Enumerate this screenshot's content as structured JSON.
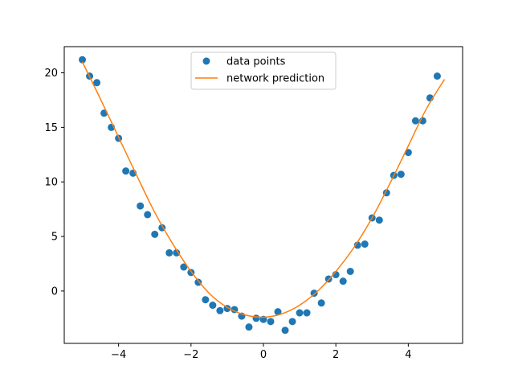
{
  "chart_data": {
    "type": "scatter",
    "title": "",
    "xlabel": "",
    "ylabel": "",
    "xlim": [
      -5.5,
      5.5
    ],
    "ylim": [
      -4.8,
      22.4
    ],
    "xticks": [
      -4,
      -2,
      0,
      2,
      4
    ],
    "xtick_labels": [
      "−4",
      "−2",
      "0",
      "2",
      "4"
    ],
    "yticks": [
      0,
      5,
      10,
      15,
      20
    ],
    "ytick_labels": [
      "0",
      "5",
      "10",
      "15",
      "20"
    ],
    "grid": false,
    "legend_position": "top-center",
    "series": [
      {
        "name": "data points",
        "type": "scatter",
        "color": "#1f77b4",
        "x": [
          -5.0,
          -4.8,
          -4.6,
          -4.4,
          -4.2,
          -4.0,
          -3.8,
          -3.6,
          -3.4,
          -3.2,
          -3.0,
          -2.8,
          -2.6,
          -2.4,
          -2.2,
          -2.0,
          -1.8,
          -1.6,
          -1.4,
          -1.2,
          -1.0,
          -0.8,
          -0.6,
          -0.4,
          -0.2,
          0.0,
          0.2,
          0.4,
          0.6,
          0.8,
          1.0,
          1.2,
          1.4,
          1.6,
          1.8,
          2.0,
          2.2,
          2.4,
          2.6,
          2.8,
          3.0,
          3.2,
          3.4,
          3.6,
          3.8,
          4.0,
          4.2,
          4.4,
          4.6,
          4.8
        ],
        "y": [
          21.2,
          19.7,
          19.1,
          16.3,
          15.0,
          14.0,
          11.0,
          10.8,
          7.8,
          7.0,
          5.2,
          5.8,
          3.5,
          3.5,
          2.2,
          1.7,
          0.8,
          -0.8,
          -1.3,
          -1.8,
          -1.6,
          -1.7,
          -2.3,
          -3.3,
          -2.5,
          -2.6,
          -2.8,
          -1.9,
          -3.6,
          -2.8,
          -2.0,
          -2.0,
          -0.2,
          -1.1,
          1.1,
          1.5,
          0.9,
          1.8,
          4.2,
          4.3,
          6.7,
          6.5,
          9.0,
          10.6,
          10.7,
          12.7,
          15.6,
          15.6,
          17.7,
          19.7
        ]
      },
      {
        "name": "network prediction",
        "type": "line",
        "color": "#ff7f0e",
        "x": [
          -5.0,
          -4.5,
          -4.0,
          -3.5,
          -3.0,
          -2.5,
          -2.0,
          -1.5,
          -1.0,
          -0.5,
          0.0,
          0.5,
          1.0,
          1.5,
          2.0,
          2.5,
          3.0,
          3.5,
          4.0,
          4.5,
          5.0
        ],
        "y": [
          21.0,
          17.6,
          14.1,
          10.6,
          7.2,
          4.3,
          1.8,
          -0.2,
          -1.5,
          -2.2,
          -2.4,
          -2.1,
          -1.3,
          0.0,
          1.8,
          4.0,
          6.7,
          9.9,
          13.3,
          16.7,
          19.4
        ]
      }
    ]
  }
}
